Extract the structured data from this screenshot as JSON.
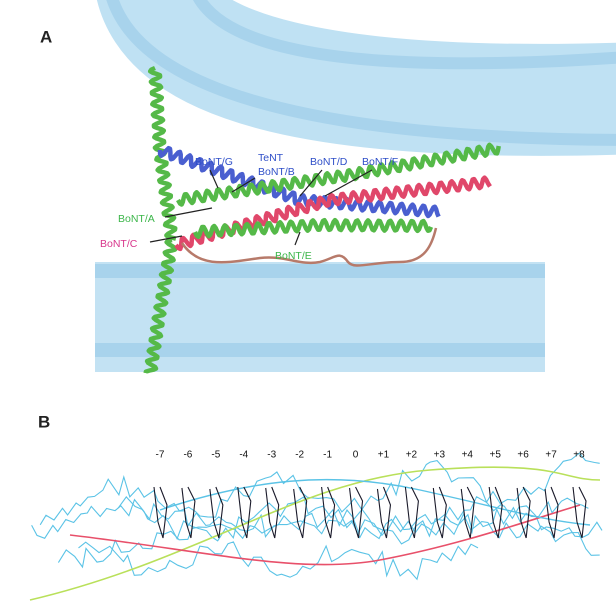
{
  "panel_a": {
    "label": "A",
    "labels": [
      "BoNT/G",
      "TeNT",
      "BoNT/B",
      "BoNT/D",
      "BoNT/F",
      "BoNT/A",
      "BoNT/C",
      "BoNT/E"
    ]
  },
  "panel_b": {
    "label": "B",
    "layers": [
      "-7",
      "-6",
      "-5",
      "-4",
      "-3",
      "-2",
      "-1",
      "0",
      "+1",
      "+2",
      "+3",
      "+4",
      "+5",
      "+6",
      "+7",
      "+8"
    ]
  }
}
